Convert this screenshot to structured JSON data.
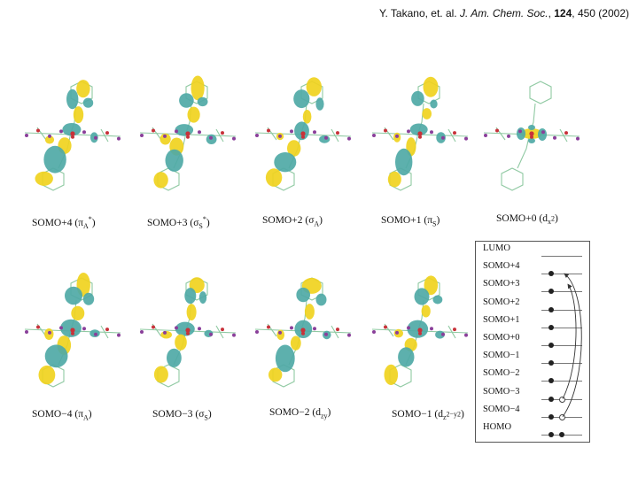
{
  "citation": {
    "authors": "Y. Takano, et. al.",
    "journal": "J. Am. Chem. Soc.",
    "volume": "124",
    "pages": "450 (2002)"
  },
  "orbitals_top": [
    {
      "name": "SOMO+4",
      "sym": "π",
      "sub": "A",
      "sup": "*"
    },
    {
      "name": "SOMO+3",
      "sym": "σ",
      "sub": "S",
      "sup": "*"
    },
    {
      "name": "SOMO+2",
      "sym": "σ",
      "sub": "A",
      "sup": ""
    },
    {
      "name": "SOMO+1",
      "sym": "π",
      "sub": "S",
      "sup": ""
    },
    {
      "name": "SOMO+0",
      "sym": "d",
      "sub": "x",
      "sup": "2"
    }
  ],
  "orbitals_bottom": [
    {
      "name": "SOMO−4",
      "sym": "π",
      "sub": "A",
      "sup": ""
    },
    {
      "name": "SOMO−3",
      "sym": "σ",
      "sub": "S",
      "sup": ""
    },
    {
      "name": "SOMO−2",
      "sym": "d",
      "sub": "zy",
      "sup": ""
    },
    {
      "name": "SOMO−1",
      "sym": "d",
      "sub": "z",
      "sup": "2−y2"
    }
  ],
  "level_diagram": {
    "levels": [
      "LUMO",
      "SOMO+4",
      "SOMO+3",
      "SOMO+2",
      "SOMO+1",
      "SOMO+0",
      "SOMO−1",
      "SOMO−2",
      "SOMO−3",
      "SOMO−4",
      "HOMO"
    ],
    "occupancy": [
      0,
      1,
      1,
      1,
      1,
      1,
      1,
      1,
      2,
      2,
      2
    ]
  },
  "colors": {
    "lobe_yellow": "#f0d21e",
    "lobe_teal": "#4fa9a6",
    "bond": "#8fc9a2",
    "atom_purple": "#8a3f9a",
    "atom_red": "#c8323a"
  }
}
